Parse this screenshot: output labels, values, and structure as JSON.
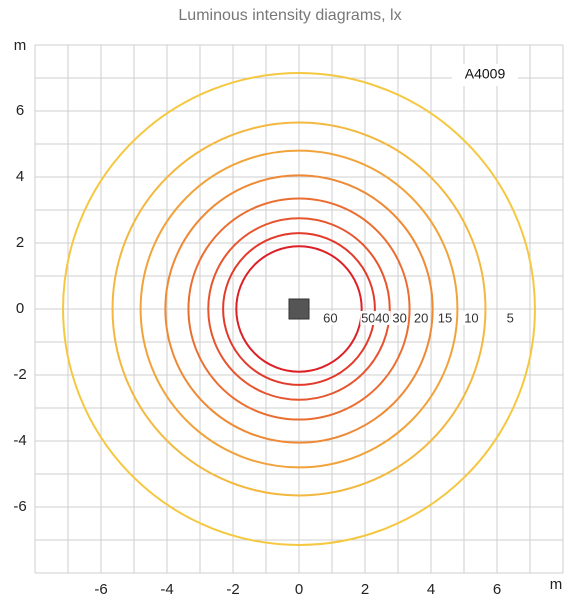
{
  "chart_data": {
    "type": "isolux",
    "title": "Luminous intensity diagrams, lx",
    "annotation": "A4009",
    "x_label": "m",
    "y_label": "m",
    "xlim": [
      -8,
      8
    ],
    "ylim": [
      -8,
      8
    ],
    "xticks": [
      -6,
      -4,
      -2,
      0,
      2,
      4,
      6
    ],
    "yticks": [
      -6,
      -4,
      -2,
      0,
      2,
      4,
      6
    ],
    "grid": true,
    "minor_step": 1,
    "levels": [
      60,
      50,
      40,
      30,
      20,
      15,
      10,
      5
    ],
    "radii": [
      1.9,
      2.3,
      2.75,
      3.35,
      4.05,
      4.8,
      5.65,
      7.15
    ],
    "colors": [
      "#dd1f26",
      "#e23a2a",
      "#e6552e",
      "#ea6e31",
      "#ee8a36",
      "#f1a33b",
      "#f3b83f",
      "#f5c842"
    ]
  }
}
